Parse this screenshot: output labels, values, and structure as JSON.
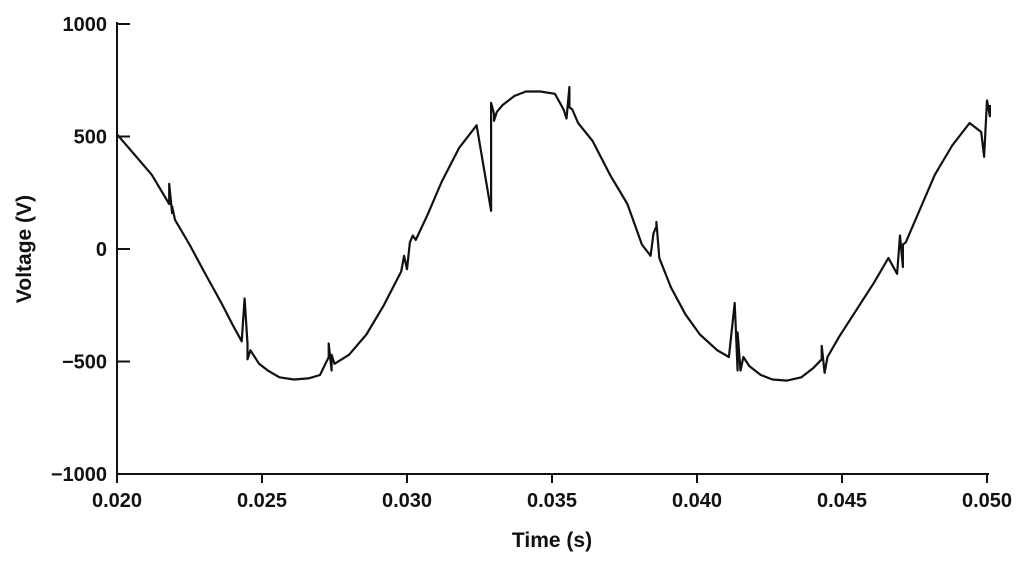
{
  "chart_data": {
    "type": "line",
    "title": "",
    "xlabel": "Time (s)",
    "ylabel": "Voltage (V)",
    "xlim": [
      0.02,
      0.05
    ],
    "ylim": [
      -1000,
      1000
    ],
    "x_ticks": [
      0.02,
      0.025,
      0.03,
      0.035,
      0.04,
      0.045,
      0.05
    ],
    "x_tick_labels": [
      "0.020",
      "0.025",
      "0.030",
      "0.035",
      "0.040",
      "0.045",
      "0.050"
    ],
    "y_ticks": [
      1000,
      500,
      0,
      -500,
      -1000
    ],
    "y_tick_labels": [
      "1000",
      "500",
      "0",
      "−500",
      "−1000"
    ],
    "grid": false,
    "legend": "none",
    "line_color": "#111111",
    "series": [
      {
        "x": [
          0.02,
          0.0206,
          0.0212,
          0.0218,
          0.0218,
          0.0219,
          0.0219,
          0.022,
          0.0225,
          0.023,
          0.0236,
          0.024,
          0.0243,
          0.0244,
          0.0245,
          0.0245,
          0.0246,
          0.0247,
          0.0249,
          0.0252,
          0.0256,
          0.0261,
          0.0266,
          0.027,
          0.0273,
          0.0273,
          0.0274,
          0.0274,
          0.0275,
          0.028,
          0.0286,
          0.0292,
          0.0298,
          0.0299,
          0.03,
          0.0301,
          0.0302,
          0.0303,
          0.0307,
          0.0312,
          0.0318,
          0.0324,
          0.0329,
          0.0329,
          0.033,
          0.033,
          0.0331,
          0.0333,
          0.0337,
          0.0341,
          0.0346,
          0.0351,
          0.0354,
          0.0355,
          0.0356,
          0.0356,
          0.0357,
          0.0359,
          0.0364,
          0.037,
          0.0376,
          0.0381,
          0.0384,
          0.0385,
          0.0386,
          0.0386,
          0.0387,
          0.0391,
          0.0396,
          0.0401,
          0.0407,
          0.0411,
          0.0413,
          0.0414,
          0.0414,
          0.0415,
          0.0416,
          0.0418,
          0.0422,
          0.0426,
          0.0431,
          0.0436,
          0.044,
          0.0443,
          0.0443,
          0.0444,
          0.0445,
          0.0449,
          0.0455,
          0.0461,
          0.0466,
          0.0469,
          0.047,
          0.0471,
          0.0471,
          0.0472,
          0.0477,
          0.0482,
          0.0488,
          0.0494,
          0.0498,
          0.0499,
          0.05,
          0.0501,
          0.0501
        ],
        "y": [
          510,
          420,
          330,
          200,
          290,
          160,
          190,
          130,
          20,
          -100,
          -240,
          -340,
          -410,
          -220,
          -420,
          -490,
          -450,
          -470,
          -510,
          -540,
          -570,
          -580,
          -575,
          -560,
          -480,
          -420,
          -540,
          -470,
          -510,
          -470,
          -380,
          -250,
          -100,
          -30,
          -90,
          30,
          60,
          40,
          150,
          300,
          450,
          550,
          170,
          650,
          600,
          570,
          610,
          640,
          680,
          700,
          700,
          690,
          620,
          580,
          720,
          630,
          620,
          560,
          480,
          330,
          200,
          20,
          -30,
          70,
          100,
          120,
          -40,
          -170,
          -290,
          -380,
          -450,
          -480,
          -240,
          -540,
          -370,
          -540,
          -480,
          -520,
          -560,
          -580,
          -585,
          -570,
          -530,
          -490,
          -430,
          -550,
          -480,
          -390,
          -270,
          -150,
          -40,
          -110,
          60,
          -80,
          20,
          30,
          180,
          330,
          460,
          560,
          520,
          410,
          660,
          590,
          640
        ]
      }
    ]
  }
}
